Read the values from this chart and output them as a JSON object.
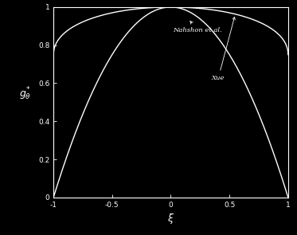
{
  "background_color": "#000000",
  "plot_bg_color": "#0a0a0a",
  "foreground_color": "#ffffff",
  "xlabel": "$\\xi$",
  "ylabel": "$g_{\\theta}^{*}$",
  "xlim": [
    -1,
    1
  ],
  "ylim": [
    0,
    1
  ],
  "xticks": [
    -1,
    -0.5,
    0,
    0.5,
    1
  ],
  "yticks": [
    0,
    0.2,
    0.4,
    0.6,
    0.8,
    1
  ],
  "curve1_label": "Nahshon et al.",
  "curve2_label": "Xue",
  "line_color": "#ffffff",
  "line_width": 1.0,
  "figsize": [
    3.73,
    2.95
  ],
  "dpi": 100
}
